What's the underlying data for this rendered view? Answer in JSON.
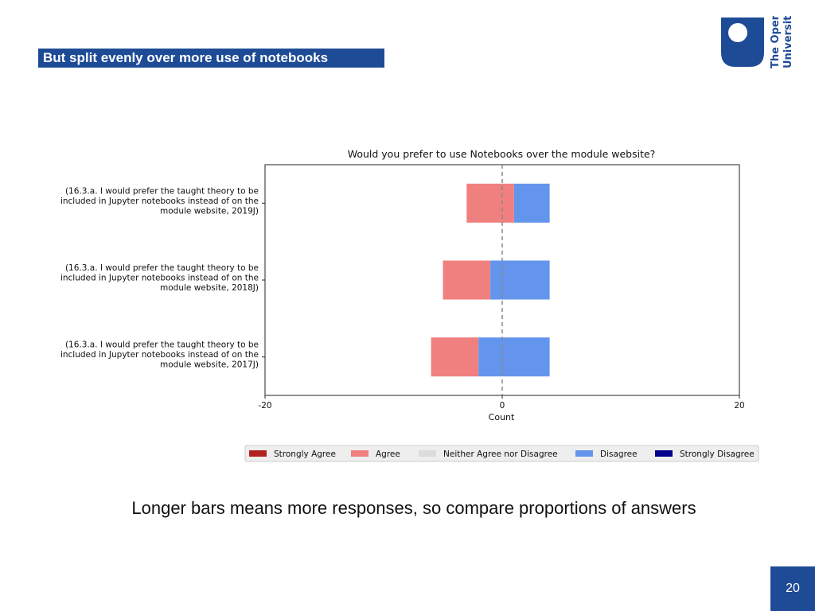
{
  "slide": {
    "title": "But split evenly over more use of notebooks",
    "caption": "Longer bars means more responses, so compare proportions of answers",
    "page_number": "20"
  },
  "logo": {
    "line1": "The Open",
    "line2": "University",
    "icon": "open-university-shield-icon",
    "color": "#1e4b96"
  },
  "chart_data": {
    "type": "bar",
    "orientation": "horizontal-diverging",
    "title": "Would you prefer to use Notebooks over the module website?",
    "xlabel": "Count",
    "ylabel": "",
    "xlim": [
      -20,
      20
    ],
    "xticks": [
      "-20",
      "0",
      "20"
    ],
    "reference_line_at": 0,
    "categories": [
      [
        "(16.3.a. I would prefer the taught theory to be",
        "included in Jupyter notebooks instead of on the",
        "module website, 2019J)"
      ],
      [
        "(16.3.a. I would prefer the taught theory to be",
        "included in Jupyter notebooks instead of on the",
        "module website, 2018J)"
      ],
      [
        "(16.3.a. I would prefer the taught theory to be",
        "included in Jupyter notebooks instead of on the",
        "module website, 2017J)"
      ]
    ],
    "bars": [
      {
        "segments": [
          {
            "series": "Agree",
            "start": -3,
            "end": 1
          },
          {
            "series": "Disagree",
            "start": 1,
            "end": 4
          }
        ]
      },
      {
        "segments": [
          {
            "series": "Agree",
            "start": -5,
            "end": -1
          },
          {
            "series": "Disagree",
            "start": -1,
            "end": 4
          }
        ]
      },
      {
        "segments": [
          {
            "series": "Agree",
            "start": -6,
            "end": -2
          },
          {
            "series": "Disagree",
            "start": -2,
            "end": 4
          }
        ]
      }
    ],
    "legend": [
      {
        "label": "Strongly Agree",
        "color": "#b22222"
      },
      {
        "label": "Agree",
        "color": "#f08080"
      },
      {
        "label": "Neither Agree nor Disagree",
        "color": "#dcdcdc"
      },
      {
        "label": "Disagree",
        "color": "#6495ed"
      },
      {
        "label": "Strongly Disagree",
        "color": "#00008b"
      }
    ],
    "legend_position": "bottom-right"
  }
}
